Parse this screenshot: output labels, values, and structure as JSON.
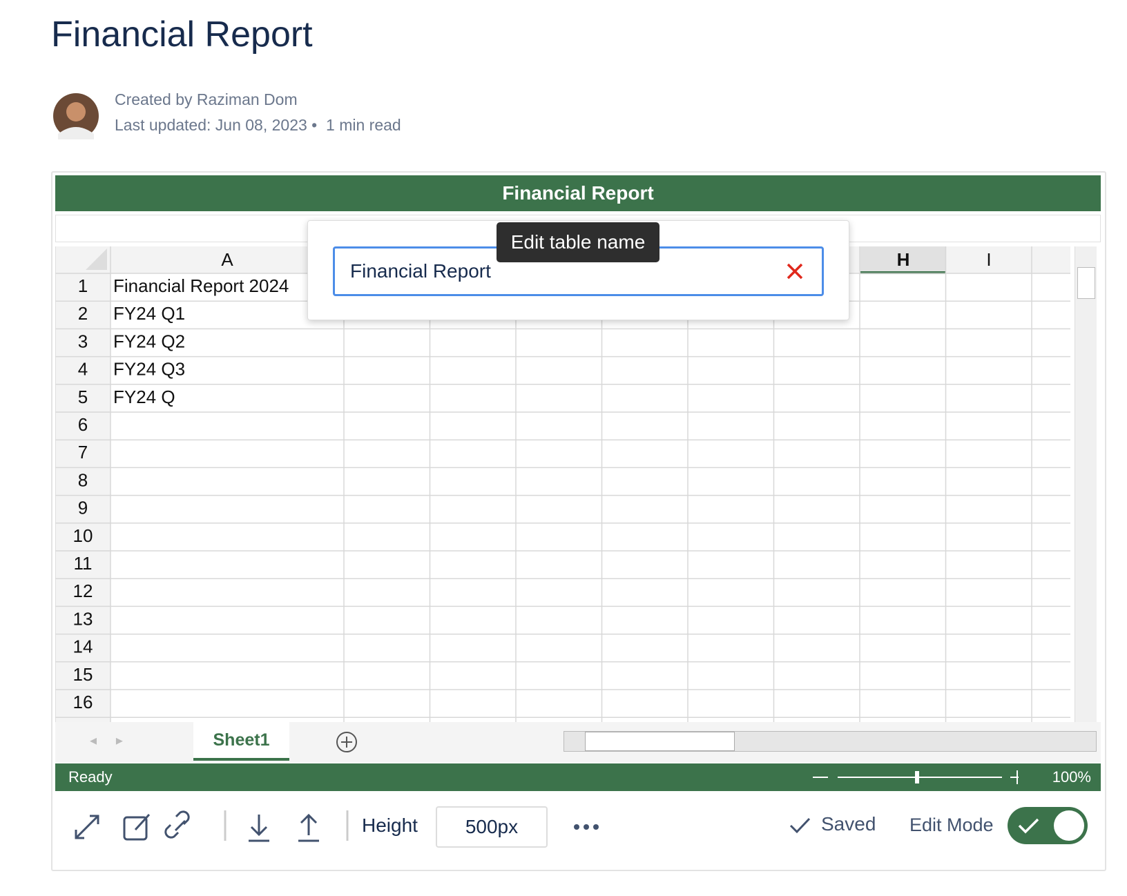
{
  "header": {
    "title": "Financial Report"
  },
  "meta": {
    "created_by": "Created by Raziman Dom",
    "last_updated": "Last updated: Jun 08, 2023",
    "read_time": "1 min read"
  },
  "spreadsheet": {
    "title": "Financial Report",
    "columns": [
      "A",
      "H",
      "I"
    ],
    "row_numbers": [
      1,
      2,
      3,
      4,
      5,
      6,
      7,
      8,
      9,
      10,
      11,
      12,
      13,
      14,
      15,
      16
    ],
    "column_a": [
      "Financial Report 2024",
      "FY24 Q1",
      "FY24 Q2",
      "FY24 Q3",
      "FY24 Q"
    ],
    "sheet_tab": "Sheet1",
    "status": "Ready",
    "zoom": "100%"
  },
  "dialog": {
    "tooltip": "Edit table name",
    "input_value": "Financial Report"
  },
  "toolbar": {
    "height_label": "Height",
    "height_value": "500px",
    "saved": "Saved",
    "edit_mode": "Edit Mode"
  }
}
